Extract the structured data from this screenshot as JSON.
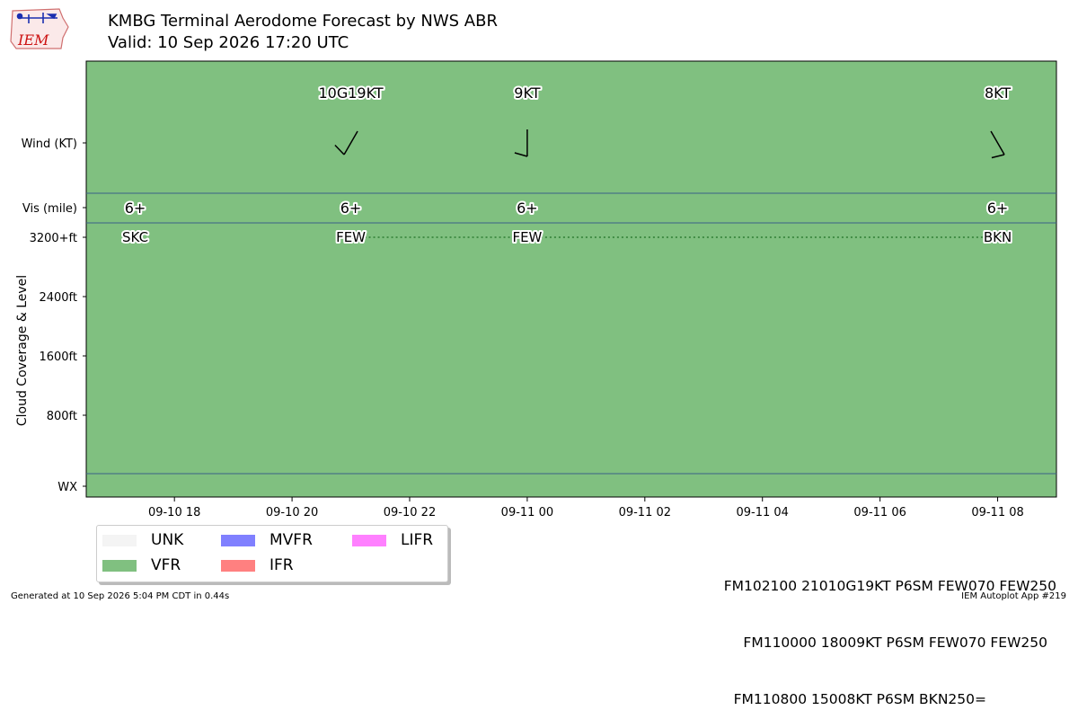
{
  "header": {
    "logo_text": "IEM",
    "title_line1": "KMBG Terminal Aerodome Forecast by NWS ABR",
    "title_line2": "Valid: 10 Sep 2026 17:20 UTC"
  },
  "colors": {
    "VFR": "#80c080",
    "UNK": "#f4f4f4",
    "MVFR": "#8080ff",
    "IFR": "#ff8080",
    "LIFR": "#ff80ff",
    "separator": "#3a5f88",
    "cloud_line": "#2e7d32"
  },
  "chart_data": {
    "type": "timeline",
    "flight_category": "VFR",
    "x_range": [
      "2026-09-10 16:30",
      "2026-09-11 09:00"
    ],
    "x_ticks": [
      "09-10 18",
      "09-10 20",
      "09-10 22",
      "09-11 00",
      "09-11 02",
      "09-11 04",
      "09-11 06",
      "09-11 08"
    ],
    "y_labels": {
      "wind": "Wind (KT)",
      "vis": "Vis (mile)",
      "cloud_levels": [
        "3200+ft",
        "2400ft",
        "1600ft",
        "800ft"
      ],
      "wx": "WX",
      "cloud_axis": "Cloud Coverage & Level"
    },
    "forecasts": [
      {
        "time": "2026-09-10 17:20",
        "wind_label": "",
        "wind_dir": null,
        "wind_speed": null,
        "vis": "6+",
        "cloud": "SKC"
      },
      {
        "time": "2026-09-10 21:00",
        "wind_label": "10G19KT",
        "wind_dir": 210,
        "wind_speed": 10,
        "wind_gust": 19,
        "vis": "6+",
        "cloud": "FEW"
      },
      {
        "time": "2026-09-11 00:00",
        "wind_label": "9KT",
        "wind_dir": 180,
        "wind_speed": 9,
        "vis": "6+",
        "cloud": "FEW"
      },
      {
        "time": "2026-09-11 08:00",
        "wind_label": "8KT",
        "wind_dir": 150,
        "wind_speed": 8,
        "vis": "6+",
        "cloud": "BKN"
      }
    ],
    "legend": [
      "UNK",
      "VFR",
      "MVFR",
      "IFR",
      "LIFR"
    ]
  },
  "raw_taf": [
    "FM102100 21010G19KT P6SM FEW070 FEW250",
    "FM110000 18009KT P6SM FEW070 FEW250",
    "FM110800 15008KT P6SM BKN250="
  ],
  "footer": {
    "left": "Generated at 10 Sep 2026 5:04 PM CDT in 0.44s",
    "right": "IEM Autoplot App #219"
  }
}
